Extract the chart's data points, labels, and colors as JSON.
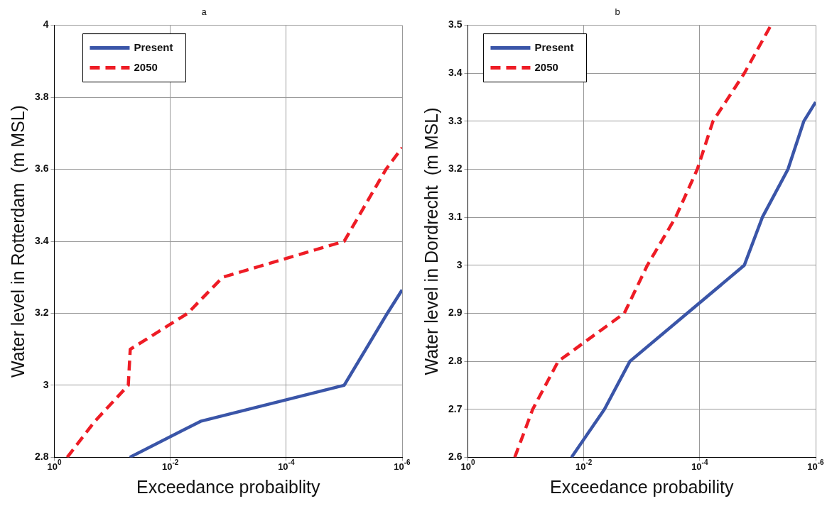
{
  "chart_data": [
    {
      "type": "line",
      "title": "a",
      "xlabel": "Exceedance probaiblity",
      "ylabel": "Water level in Rotterdam  (m MSL)",
      "log": "x",
      "grid": true,
      "legend": "top left",
      "marker": "none",
      "xlim": [
        1,
        1e-06
      ],
      "xticks": [
        {
          "value": 1,
          "label": "10$^{0}$"
        },
        {
          "value": 0.01,
          "label": "10$^{-2}$"
        },
        {
          "value": 0.0001,
          "label": "10$^{-4}$"
        },
        {
          "value": 1e-06,
          "label": "10$^{-6}$"
        }
      ],
      "ylim": [
        2.8,
        4
      ],
      "yticks": [
        2.8,
        3,
        3.2,
        3.4,
        3.6,
        3.8,
        4
      ],
      "series": [
        {
          "name": "Present",
          "color": "#3a55a8",
          "line_style": "solid",
          "x": [
            0.05,
            0.003,
            1e-05,
            1.8e-06,
            1e-06
          ],
          "values": [
            2.8,
            2.9,
            3.0,
            3.2,
            3.265
          ]
        },
        {
          "name": "2050",
          "color": "#ee1c25",
          "line_style": "dashed",
          "x": [
            0.6,
            0.2,
            0.053,
            0.049,
            0.005,
            0.00125,
            1e-05,
            1.9e-06,
            1e-06
          ],
          "values": [
            2.8,
            2.9,
            3.0,
            3.1,
            3.2,
            3.3,
            3.4,
            3.6,
            3.66
          ]
        }
      ]
    },
    {
      "type": "line",
      "title": "b",
      "xlabel": "Exceedance probability",
      "ylabel": "Water level in Dordrecht  (m MSL)",
      "log": "x",
      "grid": true,
      "legend": "top left",
      "marker": "none",
      "xlim": [
        1,
        1e-06
      ],
      "xticks": [
        {
          "value": 1,
          "label": "10$^{0}$"
        },
        {
          "value": 0.01,
          "label": "10$^{-2}$"
        },
        {
          "value": 0.0001,
          "label": "10$^{-4}$"
        },
        {
          "value": 1e-06,
          "label": "10$^{-6}$"
        }
      ],
      "ylim": [
        2.6,
        3.5
      ],
      "yticks": [
        2.6,
        2.7,
        2.8,
        2.9,
        3,
        3.1,
        3.2,
        3.3,
        3.4,
        3.5
      ],
      "series": [
        {
          "name": "Present",
          "color": "#3a55a8",
          "line_style": "solid",
          "x": [
            0.0163,
            0.0044,
            0.0016,
            1.7e-05,
            8.3e-06,
            3e-06,
            1.6e-06,
            1e-06
          ],
          "values": [
            2.6,
            2.7,
            2.8,
            3.0,
            3.1,
            3.2,
            3.3,
            3.34
          ]
        },
        {
          "name": "2050",
          "color": "#ee1c25",
          "line_style": "dashed",
          "x": [
            0.155,
            0.076,
            0.0276,
            0.002,
            0.0008,
            0.00026,
            0.00011,
            5.9e-05,
            1.7e-05,
            5.9e-06
          ],
          "values": [
            2.6,
            2.7,
            2.8,
            2.9,
            3.0,
            3.1,
            3.2,
            3.3,
            3.4,
            3.5
          ]
        }
      ]
    }
  ]
}
